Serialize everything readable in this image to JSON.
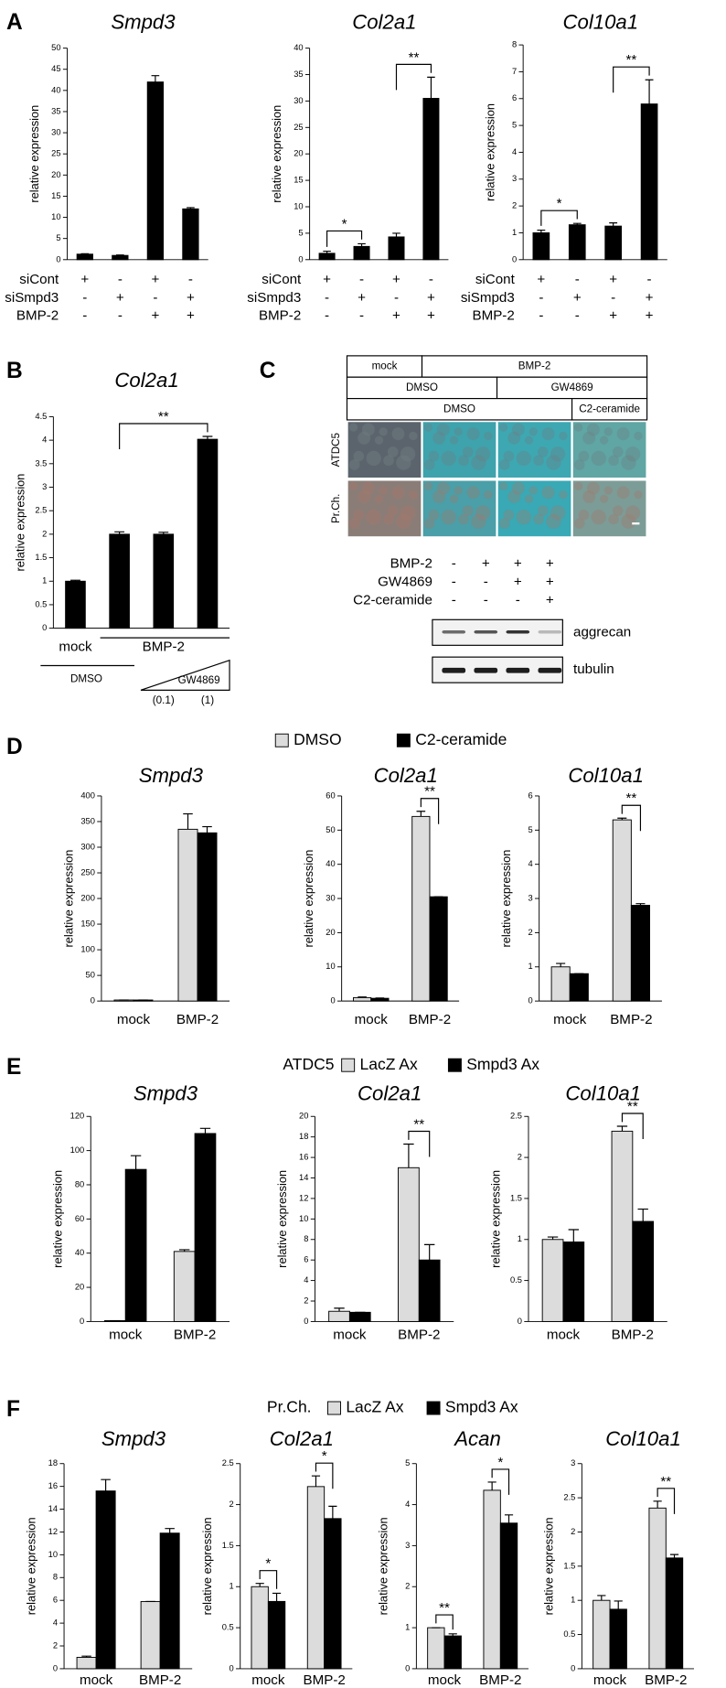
{
  "panel_labels": [
    "A",
    "B",
    "C",
    "D",
    "E",
    "F"
  ],
  "chart_data": [
    {
      "type": "bar",
      "title": "Smpd3",
      "ylabel": "relative expression",
      "ylim": [
        0,
        50
      ],
      "yticks": [
        0,
        5,
        10,
        15,
        20,
        25,
        30,
        35,
        40,
        45,
        50
      ],
      "categories": [
        null,
        null,
        null,
        null
      ],
      "series": [
        {
          "color": "#000000",
          "values": [
            1.3,
            1.0,
            42,
            12
          ],
          "errors": [
            0.1,
            0.1,
            1.5,
            0.3
          ]
        }
      ],
      "conditions": [
        {
          "label": "siCont",
          "values": [
            "+",
            "-",
            "+",
            "-"
          ]
        },
        {
          "label": "siSmpd3",
          "values": [
            "-",
            "+",
            "-",
            "+"
          ]
        },
        {
          "label": "BMP-2",
          "values": [
            "-",
            "-",
            "+",
            "+"
          ]
        }
      ]
    },
    {
      "type": "bar",
      "title": "Col2a1",
      "ylabel": "relative expression",
      "ylim": [
        0,
        40
      ],
      "yticks": [
        0,
        5,
        10,
        15,
        20,
        25,
        30,
        35,
        40
      ],
      "categories": [
        null,
        null,
        null,
        null
      ],
      "series": [
        {
          "color": "#000000",
          "values": [
            1.2,
            2.5,
            4.3,
            30.5
          ],
          "errors": [
            0.4,
            0.5,
            0.7,
            4
          ]
        }
      ],
      "brackets": [
        {
          "label": "*",
          "bars": [
            0,
            1
          ]
        },
        {
          "label": "**",
          "bars": [
            2,
            3
          ]
        }
      ],
      "conditions": [
        {
          "label": "siCont",
          "values": [
            "+",
            "-",
            "+",
            "-"
          ]
        },
        {
          "label": "siSmpd3",
          "values": [
            "-",
            "+",
            "-",
            "+"
          ]
        },
        {
          "label": "BMP-2",
          "values": [
            "-",
            "-",
            "+",
            "+"
          ]
        }
      ]
    },
    {
      "type": "bar",
      "title": "Col10a1",
      "ylabel": "relative expression",
      "ylim": [
        0,
        8
      ],
      "yticks": [
        0,
        1,
        2,
        3,
        4,
        5,
        6,
        7,
        8
      ],
      "categories": [
        null,
        null,
        null,
        null
      ],
      "series": [
        {
          "color": "#000000",
          "values": [
            1.0,
            1.3,
            1.25,
            5.8
          ],
          "errors": [
            0.1,
            0.05,
            0.12,
            0.9
          ]
        }
      ],
      "brackets": [
        {
          "label": "*",
          "bars": [
            0,
            1
          ]
        },
        {
          "label": "**",
          "bars": [
            2,
            3
          ]
        }
      ],
      "conditions": [
        {
          "label": "siCont",
          "values": [
            "+",
            "-",
            "+",
            "-"
          ]
        },
        {
          "label": "siSmpd3",
          "values": [
            "-",
            "+",
            "-",
            "+"
          ]
        },
        {
          "label": "BMP-2",
          "values": [
            "-",
            "-",
            "+",
            "+"
          ]
        }
      ]
    },
    {
      "type": "bar",
      "title": "Col2a1",
      "ylabel": "relative expression",
      "ylim": [
        0,
        4.5
      ],
      "yticks": [
        0,
        0.5,
        1,
        1.5,
        2,
        2.5,
        3,
        3.5,
        4,
        4.5
      ],
      "categories": [
        null,
        null,
        null,
        null
      ],
      "series": [
        {
          "color": "#000000",
          "values": [
            1,
            2,
            2,
            4.02
          ],
          "errors": [
            0.02,
            0.05,
            0.04,
            0.06
          ]
        }
      ],
      "brackets": [
        {
          "label": "**",
          "bars": [
            1,
            3
          ]
        }
      ],
      "group_labels": {
        "mock": "mock",
        "treatment": "BMP-2",
        "vehicle": "DMSO",
        "inhibitor": "GW4869",
        "doses": [
          "(0.1)",
          "(1)"
        ]
      }
    },
    {
      "type": "bar",
      "title": "Smpd3",
      "ylabel": "relative expression",
      "ylim": [
        0,
        400
      ],
      "yticks": [
        0,
        50,
        100,
        150,
        200,
        250,
        300,
        350,
        400
      ],
      "categories": [
        "mock",
        "BMP-2"
      ],
      "series": [
        {
          "name": "DMSO",
          "color": "#dcdcdc",
          "values": [
            2,
            335
          ],
          "errors": [
            0,
            30
          ]
        },
        {
          "name": "C2-ceramide",
          "color": "#000000",
          "values": [
            2,
            328
          ],
          "errors": [
            0,
            12
          ]
        }
      ]
    },
    {
      "type": "bar",
      "title": "Col2a1",
      "ylabel": "relative expression",
      "ylim": [
        0,
        60
      ],
      "yticks": [
        0,
        10,
        20,
        30,
        40,
        50,
        60
      ],
      "categories": [
        "mock",
        "BMP-2"
      ],
      "series": [
        {
          "name": "DMSO",
          "color": "#dcdcdc",
          "values": [
            1,
            54
          ],
          "errors": [
            0.2,
            1.5
          ]
        },
        {
          "name": "C2-ceramide",
          "color": "#000000",
          "values": [
            0.8,
            30.5
          ],
          "errors": [
            0.1,
            0
          ]
        }
      ],
      "brackets": [
        {
          "label": "**",
          "category": 1
        }
      ]
    },
    {
      "type": "bar",
      "title": "Col10a1",
      "ylabel": "relative expression",
      "ylim": [
        0,
        6
      ],
      "yticks": [
        0,
        1,
        2,
        3,
        4,
        5,
        6
      ],
      "categories": [
        "mock",
        "BMP-2"
      ],
      "series": [
        {
          "name": "DMSO",
          "color": "#dcdcdc",
          "values": [
            1.0,
            5.3
          ],
          "errors": [
            0.1,
            0.05
          ]
        },
        {
          "name": "C2-ceramide",
          "color": "#000000",
          "values": [
            0.8,
            2.8
          ],
          "errors": [
            0,
            0.05
          ]
        }
      ],
      "brackets": [
        {
          "label": "**",
          "category": 1
        }
      ]
    },
    {
      "type": "bar",
      "title": "Smpd3",
      "ylabel": "relative expression",
      "ylim": [
        0,
        120
      ],
      "yticks": [
        0,
        20,
        40,
        60,
        80,
        100,
        120
      ],
      "categories": [
        "mock",
        "BMP-2"
      ],
      "series": [
        {
          "name": "LacZ Ax",
          "color": "#dcdcdc",
          "values": [
            0.5,
            41
          ],
          "errors": [
            0,
            1
          ]
        },
        {
          "name": "Smpd3 Ax",
          "color": "#000000",
          "values": [
            89,
            110
          ],
          "errors": [
            8,
            3
          ]
        }
      ]
    },
    {
      "type": "bar",
      "title": "Col2a1",
      "ylabel": "relative expression",
      "ylim": [
        0,
        20
      ],
      "yticks": [
        0,
        2,
        4,
        6,
        8,
        10,
        12,
        14,
        16,
        18,
        20
      ],
      "categories": [
        "mock",
        "BMP-2"
      ],
      "series": [
        {
          "name": "LacZ Ax",
          "color": "#dcdcdc",
          "values": [
            1,
            15
          ],
          "errors": [
            0.3,
            2.3
          ]
        },
        {
          "name": "Smpd3 Ax",
          "color": "#000000",
          "values": [
            0.9,
            6
          ],
          "errors": [
            0,
            1.5
          ]
        }
      ],
      "brackets": [
        {
          "label": "**",
          "category": 1
        }
      ]
    },
    {
      "type": "bar",
      "title": "Col10a1",
      "ylabel": "relative expression",
      "ylim": [
        0,
        2.5
      ],
      "yticks": [
        0,
        0.5,
        1,
        1.5,
        2,
        2.5
      ],
      "categories": [
        "mock",
        "BMP-2"
      ],
      "series": [
        {
          "name": "LacZ Ax",
          "color": "#dcdcdc",
          "values": [
            1,
            2.32
          ],
          "errors": [
            0.03,
            0.06
          ]
        },
        {
          "name": "Smpd3 Ax",
          "color": "#000000",
          "values": [
            0.97,
            1.22
          ],
          "errors": [
            0.15,
            0.15
          ]
        }
      ],
      "brackets": [
        {
          "label": "**",
          "category": 1
        }
      ]
    },
    {
      "type": "bar",
      "title": "Smpd3",
      "ylabel": "relative expression",
      "ylim": [
        0,
        18
      ],
      "yticks": [
        0,
        2,
        4,
        6,
        8,
        10,
        12,
        14,
        16,
        18
      ],
      "categories": [
        "mock",
        "BMP-2"
      ],
      "series": [
        {
          "name": "LacZ Ax",
          "color": "#dcdcdc",
          "values": [
            1,
            5.9
          ],
          "errors": [
            0.1,
            0
          ]
        },
        {
          "name": "Smpd3 Ax",
          "color": "#000000",
          "values": [
            15.6,
            11.9
          ],
          "errors": [
            1,
            0.4
          ]
        }
      ]
    },
    {
      "type": "bar",
      "title": "Col2a1",
      "ylabel": "relative expression",
      "ylim": [
        0,
        2.5
      ],
      "yticks": [
        0,
        0.5,
        1,
        1.5,
        2,
        2.5
      ],
      "categories": [
        "mock",
        "BMP-2"
      ],
      "series": [
        {
          "name": "LacZ Ax",
          "color": "#dcdcdc",
          "values": [
            1.0,
            2.22
          ],
          "errors": [
            0.04,
            0.13
          ]
        },
        {
          "name": "Smpd3 Ax",
          "color": "#000000",
          "values": [
            0.82,
            1.83
          ],
          "errors": [
            0.1,
            0.15
          ]
        }
      ],
      "brackets": [
        {
          "label": "*",
          "category": 0
        },
        {
          "label": "*",
          "category": 1
        }
      ]
    },
    {
      "type": "bar",
      "title": "Acan",
      "ylabel": "relative expression",
      "ylim": [
        0,
        5
      ],
      "yticks": [
        0,
        1,
        2,
        3,
        4,
        5
      ],
      "categories": [
        "mock",
        "BMP-2"
      ],
      "series": [
        {
          "name": "LacZ Ax",
          "color": "#dcdcdc",
          "values": [
            1.0,
            4.35
          ],
          "errors": [
            0,
            0.2
          ]
        },
        {
          "name": "Smpd3 Ax",
          "color": "#000000",
          "values": [
            0.8,
            3.55
          ],
          "errors": [
            0.05,
            0.2
          ]
        }
      ],
      "brackets": [
        {
          "label": "**",
          "category": 0
        },
        {
          "label": "*",
          "category": 1
        }
      ]
    },
    {
      "type": "bar",
      "title": "Col10a1",
      "ylabel": "relative expression",
      "ylim": [
        0,
        3
      ],
      "yticks": [
        0,
        0.5,
        1,
        1.5,
        2,
        2.5,
        3
      ],
      "categories": [
        "mock",
        "BMP-2"
      ],
      "series": [
        {
          "name": "LacZ Ax",
          "color": "#dcdcdc",
          "values": [
            1.0,
            2.35
          ],
          "errors": [
            0.07,
            0.1
          ]
        },
        {
          "name": "Smpd3 Ax",
          "color": "#000000",
          "values": [
            0.87,
            1.62
          ],
          "errors": [
            0.12,
            0.05
          ]
        }
      ],
      "brackets": [
        {
          "label": "**",
          "category": 1
        }
      ]
    }
  ],
  "legends": [
    {
      "items": [
        {
          "name": "DMSO",
          "color": "#dcdcdc"
        },
        {
          "name": "C2-ceramide",
          "color": "#000000"
        }
      ]
    },
    {
      "prefix": "ATDC5",
      "items": [
        {
          "name": "LacZ Ax",
          "color": "#dcdcdc"
        },
        {
          "name": "Smpd3 Ax",
          "color": "#000000"
        }
      ]
    },
    {
      "prefix": "Pr.Ch.",
      "items": [
        {
          "name": "LacZ Ax",
          "color": "#dcdcdc"
        },
        {
          "name": "Smpd3 Ax",
          "color": "#000000"
        }
      ]
    }
  ],
  "panel_c": {
    "header_rows": [
      [
        "mock",
        "BMP-2"
      ],
      [
        "DMSO",
        "GW4869"
      ],
      [
        "DMSO",
        "C2-ceramide"
      ]
    ],
    "row_labels": [
      "ATDC5",
      "Pr.Ch."
    ],
    "blot_conditions": [
      {
        "label": "BMP-2",
        "values": [
          "-",
          "+",
          "+",
          "+"
        ]
      },
      {
        "label": "GW4869",
        "values": [
          "-",
          "-",
          "+",
          "+"
        ]
      },
      {
        "label": "C2-ceramide",
        "values": [
          "-",
          "-",
          "-",
          "+"
        ]
      }
    ],
    "blot_bands": [
      "aggrecan",
      "tubulin"
    ]
  }
}
